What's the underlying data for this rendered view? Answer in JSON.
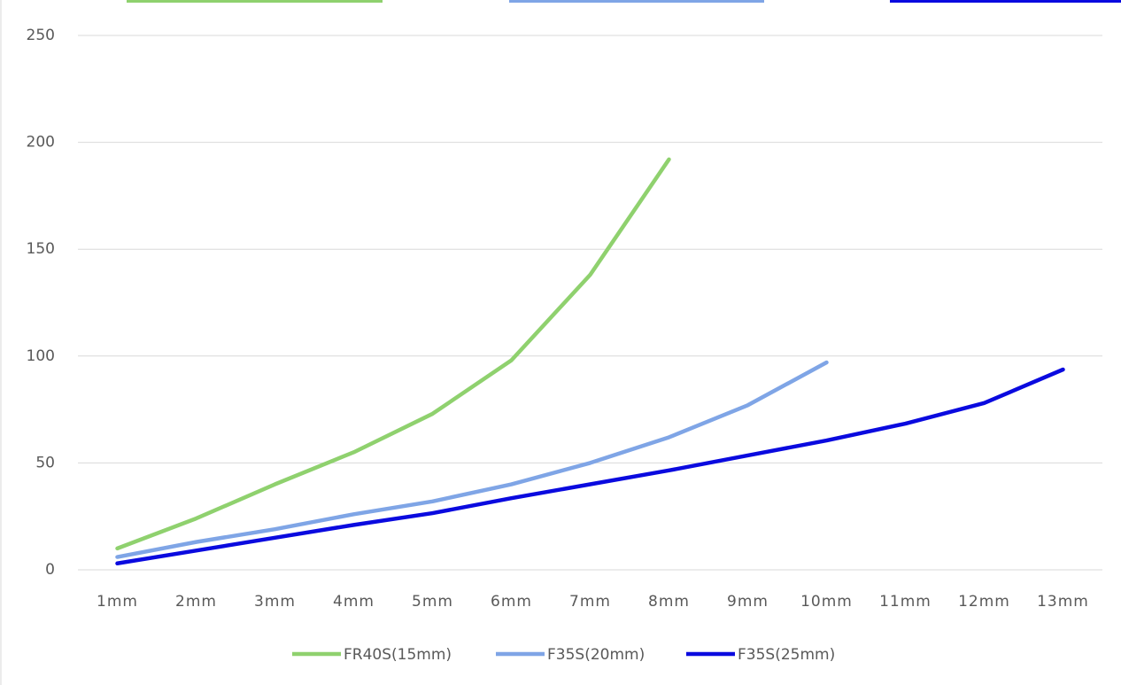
{
  "chart_data": {
    "type": "line",
    "categories": [
      "1mm",
      "2mm",
      "3mm",
      "4mm",
      "5mm",
      "6mm",
      "7mm",
      "8mm",
      "9mm",
      "10mm",
      "11mm",
      "12mm",
      "13mm"
    ],
    "series": [
      {
        "name": "FR40S(15mm)",
        "color": "#8fd16e",
        "values": [
          10,
          24,
          40,
          55,
          73,
          98,
          138,
          192,
          null,
          null,
          null,
          null,
          null
        ]
      },
      {
        "name": "F35S(20mm)",
        "color": "#7fa5e6",
        "values": [
          6,
          13,
          19,
          26,
          32,
          40,
          50,
          62,
          77,
          97,
          null,
          null,
          null
        ]
      },
      {
        "name": "F35S(25mm)",
        "color": "#0a0adf",
        "values": [
          3,
          9,
          15,
          21,
          26.5,
          33.5,
          40,
          46.5,
          53.5,
          60.5,
          68.4,
          78,
          93.7
        ]
      }
    ],
    "ylim": [
      0,
      250
    ],
    "yticks": [
      0,
      50,
      100,
      150,
      200,
      250
    ],
    "grid": true,
    "legend": "bottom"
  }
}
